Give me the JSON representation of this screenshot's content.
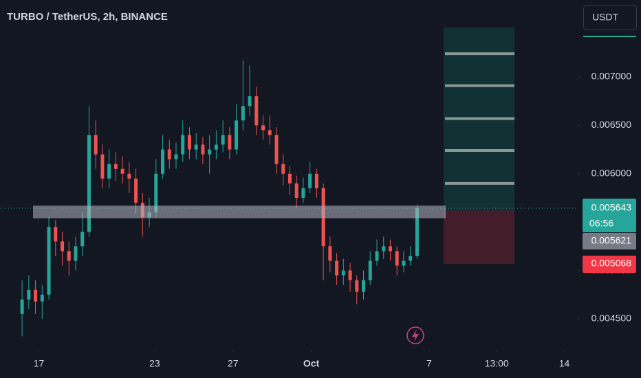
{
  "chart_data": {
    "type": "candlestick",
    "title": "TURBO / TetherUS, 2h, BINANCE",
    "currency": "USDT",
    "up_color": "#26a69a",
    "down_color": "#ef5350",
    "xlim": [
      -3.3,
      83
    ],
    "xticks": [
      {
        "value": 2.5,
        "label": "17"
      },
      {
        "value": 19.8,
        "label": "23"
      },
      {
        "value": 31.5,
        "label": "27"
      },
      {
        "value": 43.2,
        "label": "Oct"
      },
      {
        "value": 60.8,
        "label": "7"
      },
      {
        "value": 70.9,
        "label": "13:00"
      },
      {
        "value": 81.0,
        "label": "14"
      }
    ],
    "ylim": [
      0.004173,
      0.007795
    ],
    "yticks": [
      {
        "value": 0.0045,
        "label": "0.004500"
      },
      {
        "value": 0.005,
        "label": "0.005000"
      },
      {
        "value": 0.006,
        "label": "0.006000"
      },
      {
        "value": 0.0065,
        "label": "0.006500"
      },
      {
        "value": 0.007,
        "label": "0.007000"
      }
    ],
    "open": [
      0.00455,
      0.0047,
      0.0048,
      0.00468,
      0.00475,
      0.00545,
      0.0053,
      0.0052,
      0.0051,
      0.00525,
      0.0054,
      0.0064,
      0.0062,
      0.00595,
      0.0061,
      0.00605,
      0.006,
      0.00595,
      0.0057,
      0.00555,
      0.0056,
      0.006,
      0.00625,
      0.00615,
      0.0062,
      0.0064,
      0.00625,
      0.0063,
      0.0062,
      0.00625,
      0.0063,
      0.0064,
      0.00625,
      0.00655,
      0.0067,
      0.0068,
      0.0065,
      0.00645,
      0.0064,
      0.0061,
      0.006,
      0.0059,
      0.00575,
      0.00585,
      0.006,
      0.00585,
      0.00525,
      0.0051,
      0.00495,
      0.005,
      0.0049,
      0.00478,
      0.0049,
      0.0051,
      0.0052,
      0.00525,
      0.0052,
      0.00505,
      0.0051,
      0.00515
    ],
    "high": [
      0.0049,
      0.00495,
      0.0049,
      0.00485,
      0.00555,
      0.00552,
      0.0054,
      0.0053,
      0.00535,
      0.0056,
      0.0067,
      0.00655,
      0.0063,
      0.00625,
      0.00622,
      0.00618,
      0.00612,
      0.00605,
      0.0058,
      0.00575,
      0.00615,
      0.0064,
      0.00635,
      0.00632,
      0.00655,
      0.00648,
      0.00642,
      0.00638,
      0.0064,
      0.00645,
      0.00655,
      0.00648,
      0.00672,
      0.00717,
      0.00712,
      0.0069,
      0.0066,
      0.0066,
      0.00648,
      0.0062,
      0.00608,
      0.00598,
      0.00596,
      0.00612,
      0.00605,
      0.0059,
      0.00535,
      0.00518,
      0.00512,
      0.00508,
      0.00495,
      0.005,
      0.0052,
      0.00532,
      0.00535,
      0.00532,
      0.00525,
      0.0052,
      0.00525,
      0.00568
    ],
    "low": [
      0.00432,
      0.0046,
      0.00455,
      0.0045,
      0.0047,
      0.00515,
      0.00505,
      0.00495,
      0.005,
      0.00515,
      0.00535,
      0.00605,
      0.00585,
      0.00585,
      0.00592,
      0.0059,
      0.0058,
      0.00558,
      0.00535,
      0.00545,
      0.00555,
      0.00595,
      0.00605,
      0.00605,
      0.00612,
      0.00615,
      0.00615,
      0.0061,
      0.006,
      0.00615,
      0.00622,
      0.00615,
      0.0062,
      0.00645,
      0.0066,
      0.0064,
      0.00635,
      0.0063,
      0.006,
      0.00588,
      0.00578,
      0.00565,
      0.0057,
      0.0058,
      0.00575,
      0.0049,
      0.00498,
      0.00485,
      0.00485,
      0.00478,
      0.00465,
      0.0047,
      0.00485,
      0.00505,
      0.00512,
      0.0051,
      0.00495,
      0.00498,
      0.00505,
      0.00512
    ],
    "close": [
      0.0047,
      0.0048,
      0.00468,
      0.00475,
      0.00545,
      0.0053,
      0.0052,
      0.0051,
      0.00525,
      0.0054,
      0.0064,
      0.0062,
      0.00595,
      0.0061,
      0.00605,
      0.006,
      0.00595,
      0.0057,
      0.00555,
      0.0056,
      0.006,
      0.00625,
      0.00615,
      0.0062,
      0.0064,
      0.00625,
      0.0063,
      0.0062,
      0.00625,
      0.0063,
      0.0064,
      0.00625,
      0.00655,
      0.0067,
      0.0068,
      0.0065,
      0.00645,
      0.0064,
      0.0061,
      0.006,
      0.0059,
      0.00575,
      0.00585,
      0.006,
      0.00585,
      0.00525,
      0.0051,
      0.00495,
      0.005,
      0.0049,
      0.00478,
      0.0049,
      0.0051,
      0.0052,
      0.00525,
      0.0052,
      0.00505,
      0.0051,
      0.00515,
      0.005643
    ],
    "current_price": 0.005643,
    "countdown": "06:56",
    "zone": [
      0.00554,
      0.00567
    ],
    "position": {
      "entry": 0.005621,
      "stop": 0.005068,
      "target": 0.00751,
      "levels": [
        0.0059,
        0.00624,
        0.00657,
        0.00691,
        0.00724
      ]
    }
  }
}
